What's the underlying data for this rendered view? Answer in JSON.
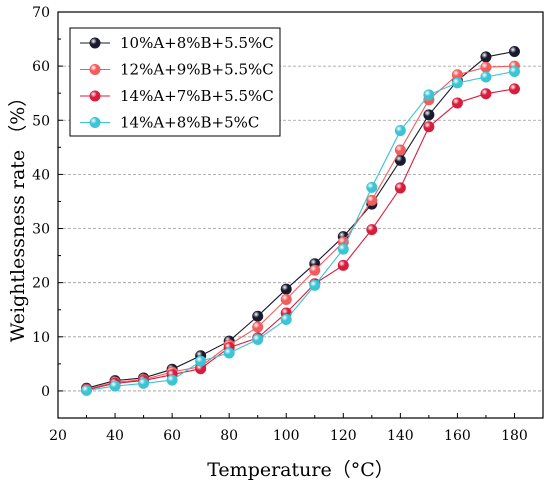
{
  "chart_data": {
    "type": "line",
    "xlabel": "Temperature（°C）",
    "ylabel": "Weightlessness rate （%）",
    "xlim": [
      20,
      190
    ],
    "ylim": [
      -5,
      70
    ],
    "xticks": [
      20,
      40,
      60,
      80,
      100,
      120,
      140,
      160,
      180
    ],
    "yticks": [
      0,
      10,
      20,
      30,
      40,
      50,
      60,
      70
    ],
    "grid": "horizontal dashed",
    "legend_position": "top-left",
    "x": [
      30,
      40,
      50,
      60,
      70,
      80,
      90,
      100,
      110,
      120,
      130,
      140,
      150,
      160,
      170,
      180
    ],
    "series": [
      {
        "name": "10%A+8%B+5.5%C",
        "color": "#1a1a2e",
        "values": [
          0.5,
          1.9,
          2.4,
          4.0,
          6.5,
          9.2,
          13.8,
          18.8,
          23.5,
          28.5,
          34.5,
          42.6,
          51.0,
          57.3,
          61.7,
          62.7
        ]
      },
      {
        "name": "12%A+9%B+5.5%C",
        "color": "#f25c5c",
        "values": [
          0.3,
          1.6,
          2.1,
          3.5,
          4.5,
          8.5,
          11.8,
          16.9,
          22.3,
          27.5,
          35.2,
          44.5,
          53.8,
          58.4,
          59.8,
          60.0
        ]
      },
      {
        "name": "14%A+7%B+5.5%C",
        "color": "#d91c3c",
        "values": [
          0.2,
          1.4,
          1.9,
          3.0,
          4.1,
          8.0,
          9.8,
          14.4,
          19.8,
          23.2,
          29.8,
          37.5,
          48.8,
          53.2,
          54.9,
          55.8
        ]
      },
      {
        "name": "14%A+8%B+5%C",
        "color": "#3ac4d4",
        "values": [
          0.1,
          0.9,
          1.4,
          2.0,
          5.5,
          7.0,
          9.5,
          13.2,
          19.5,
          26.2,
          37.6,
          48.1,
          54.7,
          56.9,
          58.0,
          59.0
        ]
      }
    ]
  }
}
